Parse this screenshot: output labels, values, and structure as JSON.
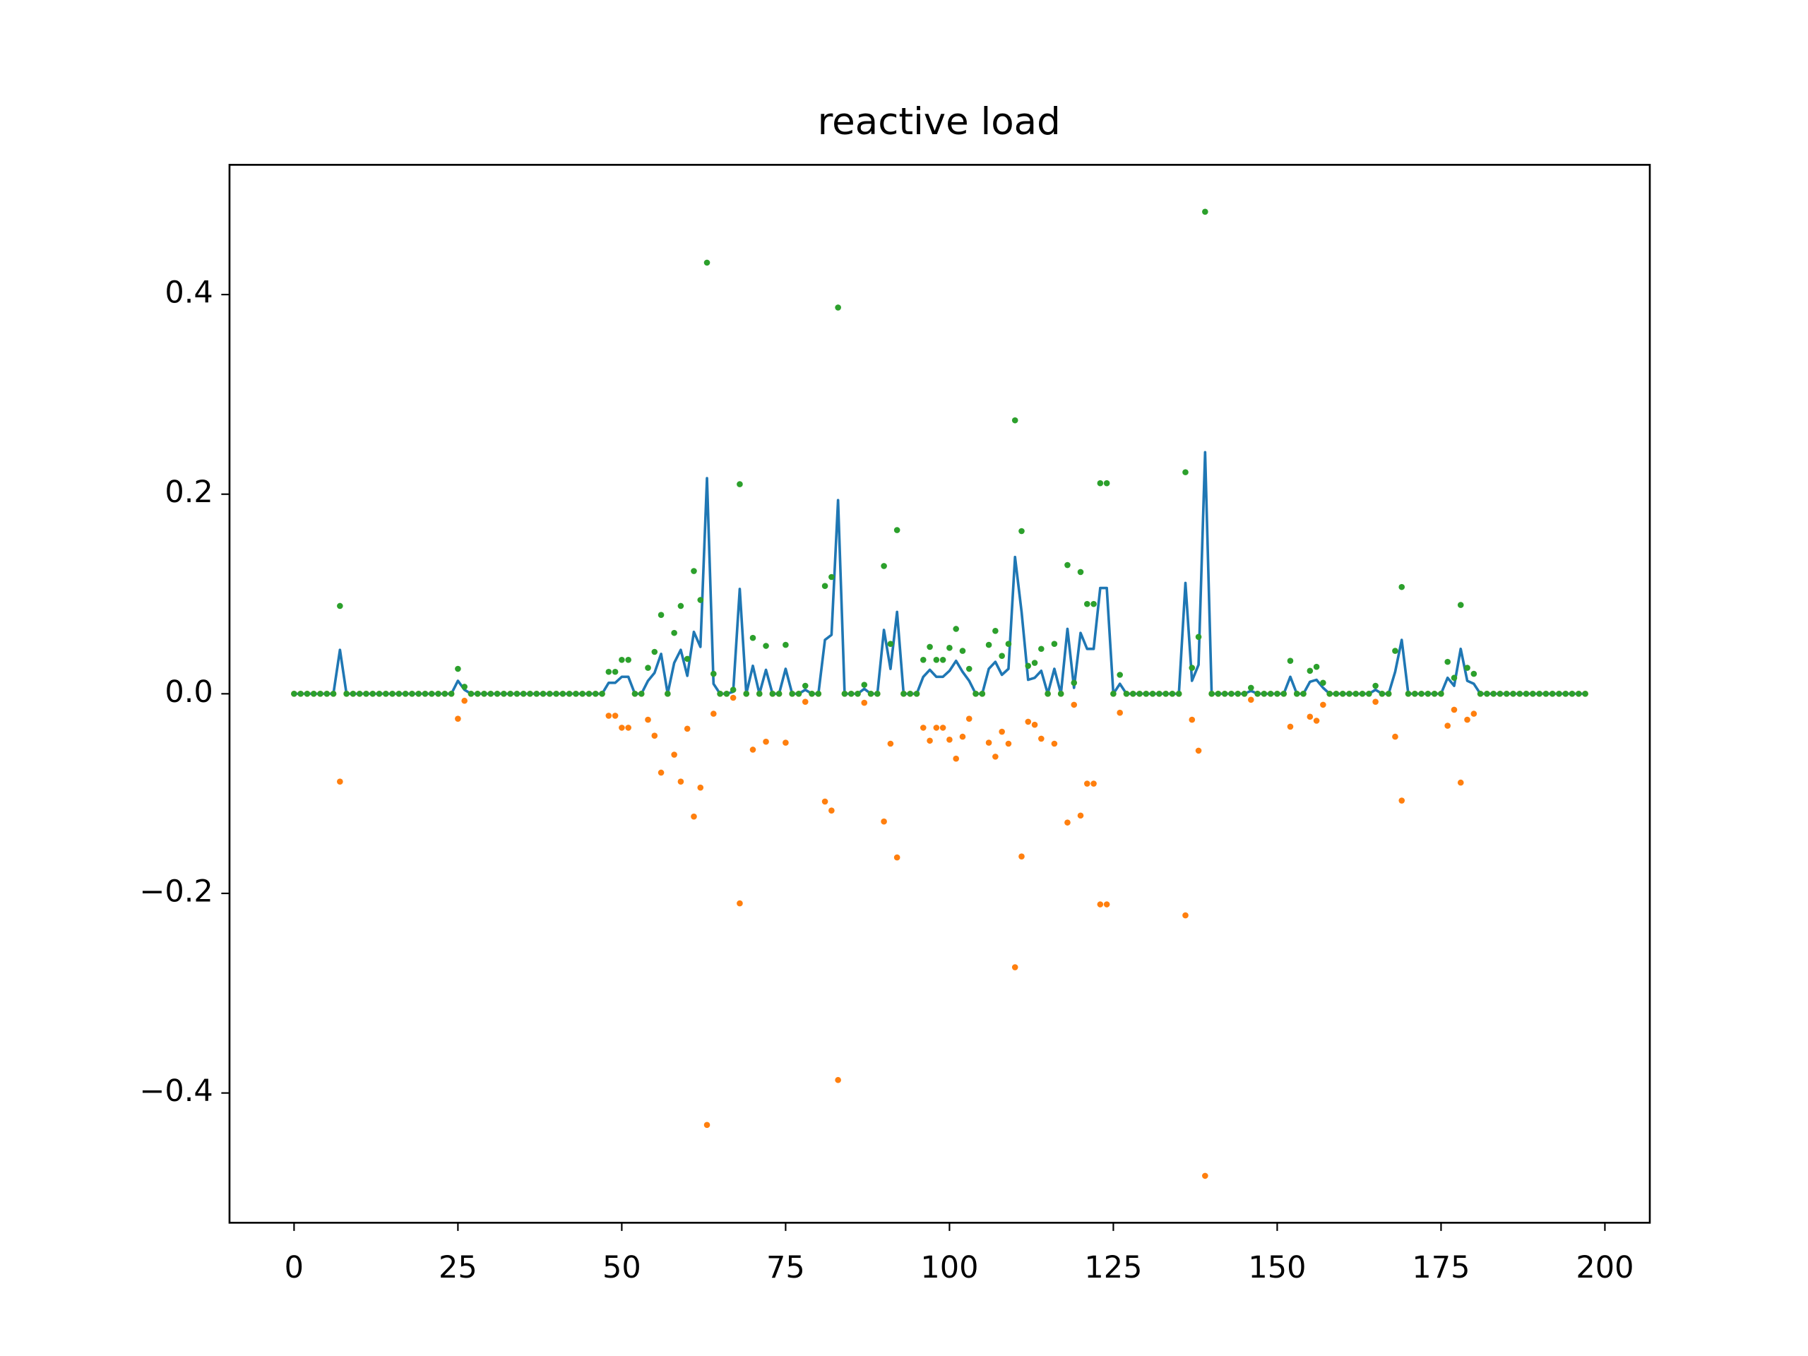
{
  "chart_data": {
    "type": "line",
    "title": "reactive load",
    "x": [
      0,
      1,
      2,
      3,
      4,
      5,
      6,
      7,
      8,
      9,
      10,
      11,
      12,
      13,
      14,
      15,
      16,
      17,
      18,
      19,
      20,
      21,
      22,
      23,
      24,
      25,
      26,
      27,
      28,
      29,
      30,
      31,
      32,
      33,
      34,
      35,
      36,
      37,
      38,
      39,
      40,
      41,
      42,
      43,
      44,
      45,
      46,
      47,
      48,
      49,
      50,
      51,
      52,
      53,
      54,
      55,
      56,
      57,
      58,
      59,
      60,
      61,
      62,
      63,
      64,
      65,
      66,
      67,
      68,
      69,
      70,
      71,
      72,
      73,
      74,
      75,
      76,
      77,
      78,
      79,
      80,
      81,
      82,
      83,
      84,
      85,
      86,
      87,
      88,
      89,
      90,
      91,
      92,
      93,
      94,
      95,
      96,
      97,
      98,
      99,
      100,
      101,
      102,
      103,
      104,
      105,
      106,
      107,
      108,
      109,
      110,
      111,
      112,
      113,
      114,
      115,
      116,
      117,
      118,
      119,
      120,
      121,
      122,
      123,
      124,
      125,
      126,
      127,
      128,
      129,
      130,
      131,
      132,
      133,
      134,
      135,
      136,
      137,
      138,
      139,
      140,
      141,
      142,
      143,
      144,
      145,
      146,
      147,
      148,
      149,
      150,
      151,
      152,
      153,
      154,
      155,
      156,
      157,
      158,
      159,
      160,
      161,
      162,
      163,
      164,
      165,
      166,
      167,
      168,
      169,
      170,
      171,
      172,
      173,
      174,
      175,
      176,
      177,
      178,
      179,
      180,
      181,
      182,
      183,
      184,
      185,
      186,
      187,
      188,
      189,
      190,
      191,
      192,
      193,
      194,
      195,
      196,
      197
    ],
    "series": [
      {
        "mark": "line",
        "color": "#1f77b4",
        "values": [
          0,
          0,
          0,
          0,
          0,
          0,
          0,
          0.044,
          0,
          0,
          0,
          0,
          0,
          0,
          0,
          0,
          0,
          0,
          0,
          0,
          0,
          0,
          0,
          0,
          0,
          0.013,
          0.004,
          0,
          0,
          0,
          0,
          0,
          0,
          0,
          0,
          0,
          0,
          0,
          0,
          0,
          0,
          0,
          0,
          0,
          0,
          0,
          0,
          0,
          0.011,
          0.011,
          0.017,
          0.017,
          0,
          0,
          0.013,
          0.021,
          0.04,
          0,
          0.031,
          0.044,
          0.018,
          0.062,
          0.047,
          0.216,
          0.01,
          0,
          0,
          0.002,
          0.105,
          0,
          0.028,
          0,
          0.024,
          0,
          0,
          0.025,
          0,
          0,
          0.004,
          0,
          0,
          0.054,
          0.059,
          0.194,
          0,
          0,
          0,
          0.005,
          0,
          0,
          0.064,
          0.025,
          0.082,
          0,
          0,
          0,
          0.017,
          0.024,
          0.017,
          0.017,
          0.023,
          0.033,
          0.022,
          0.013,
          0,
          0,
          0.025,
          0.032,
          0.019,
          0.025,
          0.137,
          0.082,
          0.014,
          0.016,
          0.023,
          0,
          0.025,
          0,
          0.065,
          0.006,
          0.061,
          0.045,
          0.045,
          0.106,
          0.106,
          0,
          0.01,
          0,
          0,
          0,
          0,
          0,
          0,
          0,
          0,
          0,
          0.111,
          0.013,
          0.029,
          0.242,
          0,
          0,
          0,
          0,
          0,
          0,
          0.003,
          0,
          0,
          0,
          0,
          0,
          0.017,
          0,
          0,
          0.012,
          0.014,
          0.006,
          0,
          0,
          0,
          0,
          0,
          0,
          0,
          0.004,
          0,
          0,
          0.022,
          0.054,
          0,
          0,
          0,
          0,
          0,
          0,
          0.016,
          0.008,
          0.045,
          0.013,
          0.01,
          0,
          0,
          0,
          0,
          0,
          0,
          0,
          0,
          0,
          0,
          0,
          0,
          0,
          0,
          0,
          0,
          0
        ]
      },
      {
        "mark": "points",
        "color": "#ff7f0e",
        "values": [
          0,
          0,
          0,
          0,
          0,
          0,
          0,
          -0.088,
          0,
          0,
          0,
          0,
          0,
          0,
          0,
          0,
          0,
          0,
          0,
          0,
          0,
          0,
          0,
          0,
          0,
          -0.025,
          -0.007,
          0,
          0,
          0,
          0,
          0,
          0,
          0,
          0,
          0,
          0,
          0,
          0,
          0,
          0,
          0,
          0,
          0,
          0,
          0,
          0,
          0,
          -0.022,
          -0.022,
          -0.034,
          -0.034,
          0,
          0,
          -0.026,
          -0.042,
          -0.079,
          0,
          -0.061,
          -0.088,
          -0.035,
          -0.123,
          -0.094,
          -0.432,
          -0.02,
          0,
          0,
          -0.004,
          -0.21,
          0,
          -0.056,
          0,
          -0.048,
          0,
          0,
          -0.049,
          0,
          0,
          -0.008,
          0,
          0,
          -0.108,
          -0.117,
          -0.387,
          0,
          0,
          0,
          -0.009,
          0,
          0,
          -0.128,
          -0.05,
          -0.164,
          0,
          0,
          0,
          -0.034,
          -0.047,
          -0.034,
          -0.034,
          -0.046,
          -0.065,
          -0.043,
          -0.025,
          0,
          0,
          -0.049,
          -0.063,
          -0.038,
          -0.05,
          -0.274,
          -0.163,
          -0.028,
          -0.031,
          -0.045,
          0,
          -0.05,
          0,
          -0.129,
          -0.011,
          -0.122,
          -0.09,
          -0.09,
          -0.211,
          -0.211,
          0,
          -0.019,
          0,
          0,
          0,
          0,
          0,
          0,
          0,
          0,
          0,
          -0.222,
          -0.026,
          -0.057,
          -0.483,
          0,
          0,
          0,
          0,
          0,
          0,
          -0.006,
          0,
          0,
          0,
          0,
          0,
          -0.033,
          0,
          0,
          -0.023,
          -0.027,
          -0.011,
          0,
          0,
          0,
          0,
          0,
          0,
          0,
          -0.008,
          0,
          0,
          -0.043,
          -0.107,
          0,
          0,
          0,
          0,
          0,
          0,
          -0.032,
          -0.016,
          -0.089,
          -0.026,
          -0.02,
          0,
          0,
          0,
          0,
          0,
          0,
          0,
          0,
          0,
          0,
          0,
          0,
          0,
          0,
          0,
          0,
          0
        ]
      },
      {
        "mark": "points",
        "color": "#2ca02c",
        "values": [
          0,
          0,
          0,
          0,
          0,
          0,
          0,
          0.088,
          0,
          0,
          0,
          0,
          0,
          0,
          0,
          0,
          0,
          0,
          0,
          0,
          0,
          0,
          0,
          0,
          0,
          0.025,
          0.007,
          0,
          0,
          0,
          0,
          0,
          0,
          0,
          0,
          0,
          0,
          0,
          0,
          0,
          0,
          0,
          0,
          0,
          0,
          0,
          0,
          0,
          0.022,
          0.022,
          0.034,
          0.034,
          0,
          0,
          0.026,
          0.042,
          0.079,
          0,
          0.061,
          0.088,
          0.035,
          0.123,
          0.094,
          0.432,
          0.02,
          0,
          0,
          0.004,
          0.21,
          0,
          0.056,
          0,
          0.048,
          0,
          0,
          0.049,
          0,
          0,
          0.008,
          0,
          0,
          0.108,
          0.117,
          0.387,
          0,
          0,
          0,
          0.009,
          0,
          0,
          0.128,
          0.05,
          0.164,
          0,
          0,
          0,
          0.034,
          0.047,
          0.034,
          0.034,
          0.046,
          0.065,
          0.043,
          0.025,
          0,
          0,
          0.049,
          0.063,
          0.038,
          0.05,
          0.274,
          0.163,
          0.028,
          0.031,
          0.045,
          0,
          0.05,
          0,
          0.129,
          0.011,
          0.122,
          0.09,
          0.09,
          0.211,
          0.211,
          0,
          0.019,
          0,
          0,
          0,
          0,
          0,
          0,
          0,
          0,
          0,
          0.222,
          0.026,
          0.057,
          0.483,
          0,
          0,
          0,
          0,
          0,
          0,
          0.006,
          0,
          0,
          0,
          0,
          0,
          0.033,
          0,
          0,
          0.023,
          0.027,
          0.011,
          0,
          0,
          0,
          0,
          0,
          0,
          0,
          0.008,
          0,
          0,
          0.043,
          0.107,
          0,
          0,
          0,
          0,
          0,
          0,
          0.032,
          0.016,
          0.089,
          0.026,
          0.02,
          0,
          0,
          0,
          0,
          0,
          0,
          0,
          0,
          0,
          0,
          0,
          0,
          0,
          0,
          0,
          0,
          0
        ]
      }
    ],
    "xlim": [
      -9.85,
      206.85
    ],
    "xticks": [
      0,
      25,
      50,
      75,
      100,
      125,
      150,
      175,
      200
    ],
    "ylim": [
      -0.53,
      0.53
    ],
    "yticks": [
      {
        "value": -0.4,
        "label": "−0.4"
      },
      {
        "value": -0.2,
        "label": "−0.2"
      },
      {
        "value": 0,
        "label": "0.0"
      },
      0.2,
      0.4
    ],
    "grid": false
  }
}
